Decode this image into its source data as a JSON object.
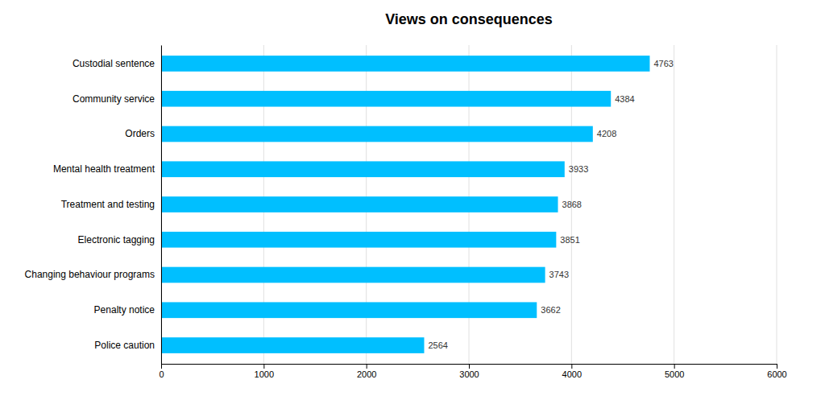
{
  "chart_data": {
    "type": "bar",
    "orientation": "horizontal",
    "title": "Views on consequences",
    "categories": [
      "Police caution",
      "Penalty notice",
      "Changing behaviour programs",
      "Electronic tagging",
      "Treatment and testing",
      "Mental health treatment",
      "Orders",
      "Community service",
      "Custodial sentence"
    ],
    "values": [
      2564,
      3662,
      3743,
      3851,
      3868,
      3933,
      4208,
      4384,
      4763
    ],
    "color": "#00BFFF",
    "xlim": [
      0,
      6000
    ],
    "xticks": [
      0,
      1000,
      2000,
      3000,
      4000,
      5000,
      6000
    ],
    "grid": true,
    "data_labels": true
  }
}
